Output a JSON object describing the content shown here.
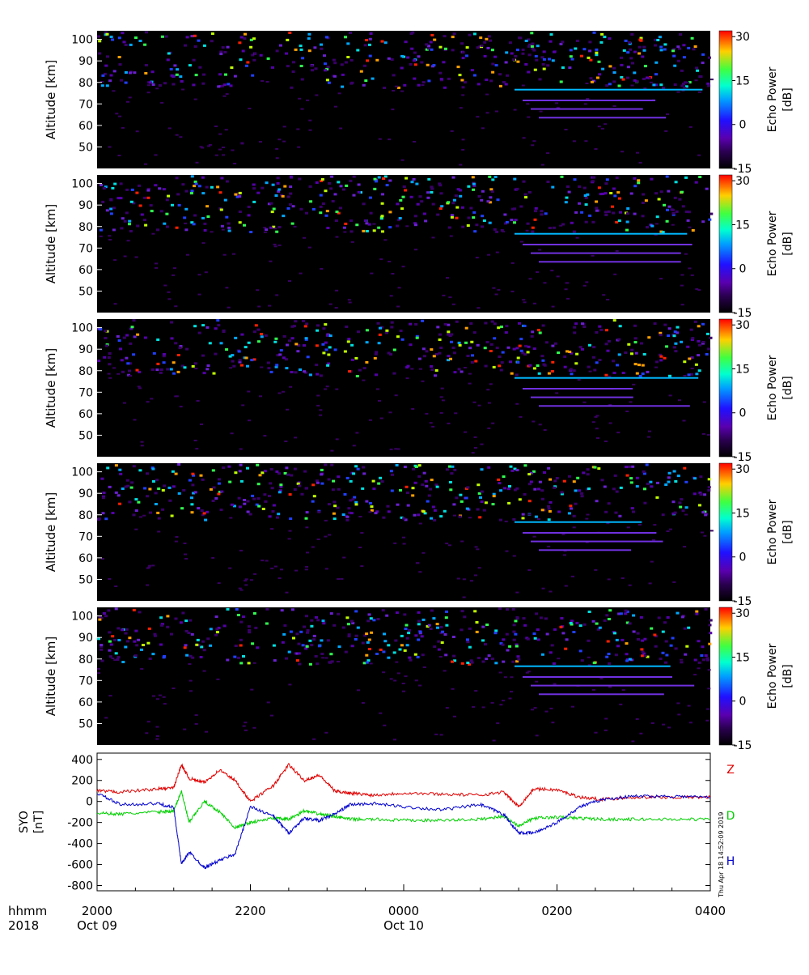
{
  "chart_data": [
    {
      "type": "heatmap",
      "panel": 1,
      "ylabel": "Altitude [km]",
      "ylim": [
        40,
        104
      ],
      "yticks": [
        "100",
        "90",
        "80",
        "70",
        "60",
        "50"
      ],
      "colorbar": {
        "label": "Echo Power",
        "unit": "[dB]",
        "range": [
          -15,
          32
        ],
        "ticks": [
          "30",
          "15",
          "0",
          "-15"
        ]
      }
    },
    {
      "type": "heatmap",
      "panel": 2,
      "ylabel": "Altitude [km]",
      "ylim": [
        40,
        104
      ],
      "yticks": [
        "100",
        "90",
        "80",
        "70",
        "60",
        "50"
      ],
      "colorbar": {
        "label": "Echo Power",
        "unit": "[dB]",
        "range": [
          -15,
          32
        ],
        "ticks": [
          "30",
          "15",
          "0",
          "-15"
        ]
      }
    },
    {
      "type": "heatmap",
      "panel": 3,
      "ylabel": "Altitude [km]",
      "ylim": [
        40,
        104
      ],
      "yticks": [
        "100",
        "90",
        "80",
        "70",
        "60",
        "50"
      ],
      "colorbar": {
        "label": "Echo Power",
        "unit": "[dB]",
        "range": [
          -15,
          32
        ],
        "ticks": [
          "30",
          "15",
          "0",
          "-15"
        ]
      }
    },
    {
      "type": "heatmap",
      "panel": 4,
      "ylabel": "Altitude [km]",
      "ylim": [
        40,
        104
      ],
      "yticks": [
        "100",
        "90",
        "80",
        "70",
        "60",
        "50"
      ],
      "colorbar": {
        "label": "Echo Power",
        "unit": "[dB]",
        "range": [
          -15,
          32
        ],
        "ticks": [
          "30",
          "15",
          "0",
          "-15"
        ]
      }
    },
    {
      "type": "heatmap",
      "panel": 5,
      "ylabel": "Altitude [km]",
      "ylim": [
        40,
        104
      ],
      "yticks": [
        "100",
        "90",
        "80",
        "70",
        "60",
        "50"
      ],
      "colorbar": {
        "label": "Echo Power",
        "unit": "[dB]",
        "range": [
          -15,
          32
        ],
        "ticks": [
          "30",
          "15",
          "0",
          "-15"
        ]
      }
    },
    {
      "type": "line",
      "panel": 6,
      "ylabel": "SYO",
      "yunit": "[nT]",
      "ylim": [
        -850,
        460
      ],
      "yticks": [
        "400",
        "200",
        "0",
        "-200",
        "-400",
        "-600",
        "-800"
      ],
      "xlim": [
        20,
        28
      ],
      "xticks": [
        {
          "t": 20,
          "top": "2000",
          "bottom": "Oct 09"
        },
        {
          "t": 22,
          "top": "2200",
          "bottom": ""
        },
        {
          "t": 24,
          "top": "0000",
          "bottom": "Oct 10"
        },
        {
          "t": 26,
          "top": "0200",
          "bottom": ""
        },
        {
          "t": 28,
          "top": "0400",
          "bottom": ""
        }
      ],
      "xlabel_top": "hhmm",
      "xlabel_bottom": "2018",
      "series": [
        {
          "name": "Z",
          "color": "#e00000",
          "x": [
            20,
            20.3,
            20.8,
            21.0,
            21.1,
            21.2,
            21.4,
            21.6,
            21.8,
            22.0,
            22.3,
            22.5,
            22.7,
            22.9,
            23.1,
            23.3,
            23.6,
            24.0,
            24.5,
            25.0,
            25.3,
            25.5,
            25.7,
            26.0,
            26.3,
            26.6,
            27.0,
            27.5,
            28.0
          ],
          "y": [
            100,
            90,
            120,
            130,
            350,
            220,
            180,
            300,
            200,
            0,
            150,
            350,
            200,
            250,
            100,
            80,
            60,
            80,
            70,
            60,
            90,
            -50,
            120,
            110,
            40,
            20,
            40,
            40,
            40
          ]
        },
        {
          "name": "D",
          "color": "#00d000",
          "x": [
            20,
            20.3,
            20.8,
            21.0,
            21.1,
            21.2,
            21.4,
            21.6,
            21.8,
            22.0,
            22.3,
            22.5,
            22.7,
            22.9,
            23.1,
            23.3,
            23.6,
            24.0,
            24.5,
            25.0,
            25.3,
            25.5,
            25.7,
            26.0,
            26.3,
            26.6,
            27.0,
            27.5,
            28.0
          ],
          "y": [
            -110,
            -120,
            -100,
            -90,
            100,
            -200,
            0,
            -100,
            -250,
            -200,
            -160,
            -170,
            -90,
            -120,
            -140,
            -170,
            -170,
            -180,
            -180,
            -170,
            -140,
            -230,
            -160,
            -150,
            -160,
            -170,
            -170,
            -170,
            -170
          ]
        },
        {
          "name": "H",
          "color": "#0000cc",
          "x": [
            20,
            20.3,
            20.8,
            21.0,
            21.1,
            21.2,
            21.4,
            21.6,
            21.8,
            22.0,
            22.3,
            22.5,
            22.7,
            22.9,
            23.1,
            23.3,
            23.6,
            24.0,
            24.5,
            25.0,
            25.3,
            25.5,
            25.7,
            26.0,
            26.3,
            26.6,
            27.0,
            27.5,
            28.0
          ],
          "y": [
            80,
            -30,
            -20,
            -60,
            -600,
            -480,
            -630,
            -560,
            -500,
            -50,
            -140,
            -300,
            -160,
            -180,
            -120,
            -30,
            -20,
            -50,
            -80,
            -30,
            -120,
            -300,
            -300,
            -200,
            -50,
            20,
            50,
            50,
            40
          ]
        }
      ]
    }
  ],
  "stamp": "Thu Apr 18 14:52:09 2019"
}
